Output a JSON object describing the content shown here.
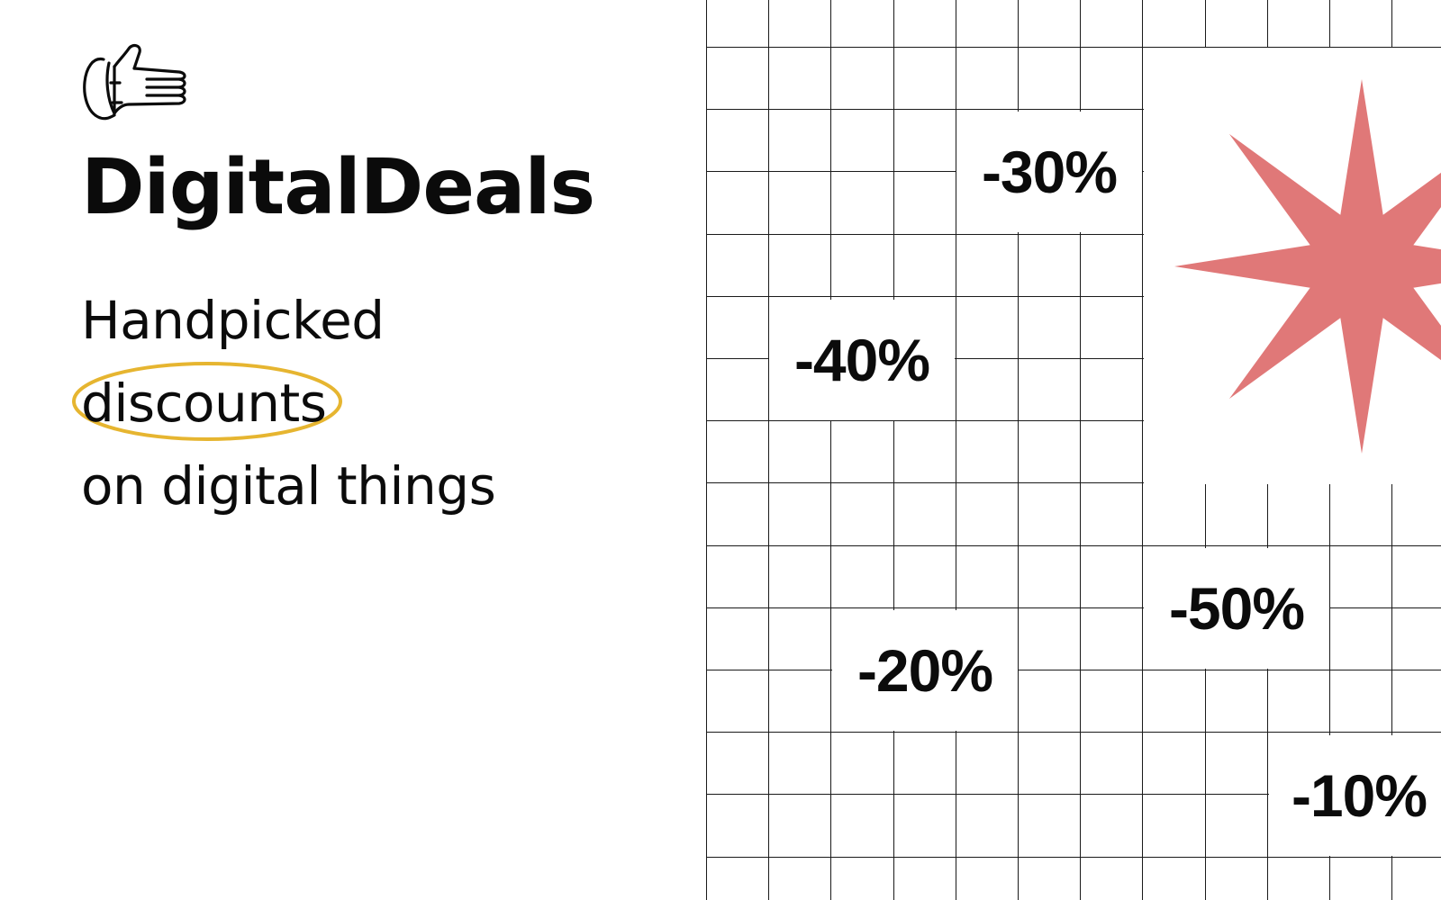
{
  "brand": {
    "name": "DigitalDeals",
    "logo_icon": "thumbs-up-hand-icon"
  },
  "tagline": {
    "line1": "Handpicked",
    "line2": "discounts",
    "line3": "on digital things",
    "highlight_color": "#e6b530"
  },
  "decor": {
    "starburst_color": "#e07878",
    "grid_line_color": "#1a1a1a"
  },
  "discounts": [
    "-30%",
    "-40%",
    "-50%",
    "-20%",
    "-10%"
  ]
}
